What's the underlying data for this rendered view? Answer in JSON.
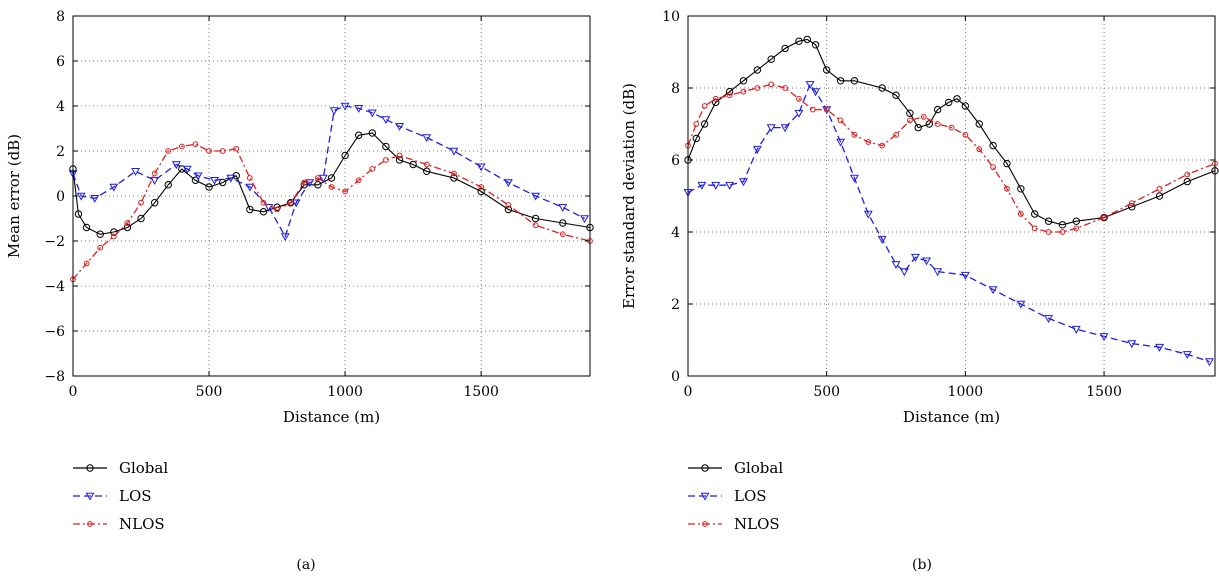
{
  "chart_data": [
    {
      "type": "line",
      "caption": "(a)",
      "xlabel": "Distance (m)",
      "ylabel": "Mean error (dB)",
      "xlim": [
        0,
        1900
      ],
      "ylim": [
        -8,
        8
      ],
      "xticks": [
        0,
        500,
        1000,
        1500
      ],
      "yticks": [
        -8,
        -6,
        -4,
        -2,
        0,
        2,
        4,
        6,
        8
      ],
      "xtick_labels": [
        "0",
        "500",
        "1000",
        "1500"
      ],
      "ytick_labels": [
        "−8",
        "−6",
        "−4",
        "−2",
        "0",
        "2",
        "4",
        "6",
        "8"
      ],
      "grid": true,
      "legend_position": "below",
      "series": [
        {
          "name": "Global",
          "color": "#000000",
          "marker": "circle",
          "dash": "solid",
          "x": [
            0,
            20,
            50,
            100,
            150,
            200,
            250,
            300,
            350,
            400,
            450,
            500,
            550,
            600,
            650,
            700,
            750,
            800,
            850,
            900,
            950,
            1000,
            1050,
            1100,
            1150,
            1200,
            1250,
            1300,
            1400,
            1500,
            1600,
            1700,
            1800,
            1900
          ],
          "y": [
            1.2,
            -0.8,
            -1.4,
            -1.7,
            -1.6,
            -1.4,
            -1.0,
            -0.3,
            0.5,
            1.2,
            0.7,
            0.4,
            0.6,
            0.9,
            -0.6,
            -0.7,
            -0.5,
            -0.3,
            0.5,
            0.5,
            0.8,
            1.8,
            2.7,
            2.8,
            2.2,
            1.6,
            1.4,
            1.1,
            0.8,
            0.2,
            -0.6,
            -1.0,
            -1.2,
            -1.4
          ]
        },
        {
          "name": "LOS",
          "color": "#1f1fe0",
          "marker": "triangle-down",
          "dash": "dashed",
          "x": [
            0,
            30,
            80,
            150,
            230,
            300,
            380,
            420,
            460,
            520,
            580,
            650,
            720,
            780,
            820,
            870,
            920,
            960,
            1000,
            1050,
            1100,
            1150,
            1200,
            1300,
            1400,
            1500,
            1600,
            1700,
            1800,
            1880
          ],
          "y": [
            1.0,
            0.0,
            -0.1,
            0.4,
            1.1,
            0.7,
            1.4,
            1.2,
            0.9,
            0.7,
            0.8,
            0.4,
            -0.5,
            -1.8,
            -0.3,
            0.6,
            0.8,
            3.8,
            4.0,
            3.9,
            3.7,
            3.4,
            3.1,
            2.6,
            2.0,
            1.3,
            0.6,
            0.0,
            -0.5,
            -1.0
          ]
        },
        {
          "name": "NLOS",
          "color": "#e01f1f",
          "marker": "circle-small",
          "dash": "dashdot",
          "x": [
            0,
            50,
            100,
            150,
            200,
            250,
            300,
            350,
            400,
            450,
            500,
            550,
            600,
            650,
            700,
            750,
            800,
            850,
            900,
            950,
            1000,
            1050,
            1100,
            1150,
            1200,
            1300,
            1400,
            1500,
            1600,
            1700,
            1800,
            1900
          ],
          "y": [
            -3.7,
            -3.0,
            -2.3,
            -1.8,
            -1.2,
            -0.3,
            1.0,
            2.0,
            2.2,
            2.3,
            2.0,
            2.0,
            2.1,
            0.8,
            -0.3,
            -0.6,
            -0.3,
            0.6,
            0.8,
            0.4,
            0.2,
            0.7,
            1.2,
            1.6,
            1.8,
            1.4,
            1.0,
            0.4,
            -0.4,
            -1.3,
            -1.7,
            -2.0
          ]
        }
      ]
    },
    {
      "type": "line",
      "caption": "(b)",
      "xlabel": "Distance (m)",
      "ylabel": "Error standard deviation (dB)",
      "xlim": [
        0,
        1900
      ],
      "ylim": [
        0,
        10
      ],
      "xticks": [
        0,
        500,
        1000,
        1500
      ],
      "yticks": [
        0,
        2,
        4,
        6,
        8,
        10
      ],
      "xtick_labels": [
        "0",
        "500",
        "1000",
        "1500"
      ],
      "ytick_labels": [
        "0",
        "2",
        "4",
        "6",
        "8",
        "10"
      ],
      "grid": true,
      "legend_position": "below",
      "series": [
        {
          "name": "Global",
          "color": "#000000",
          "marker": "circle",
          "dash": "solid",
          "x": [
            0,
            30,
            60,
            100,
            150,
            200,
            250,
            300,
            350,
            400,
            430,
            460,
            500,
            550,
            600,
            700,
            750,
            800,
            830,
            870,
            900,
            940,
            970,
            1000,
            1050,
            1100,
            1150,
            1200,
            1250,
            1300,
            1350,
            1400,
            1500,
            1600,
            1700,
            1800,
            1900
          ],
          "y": [
            6.0,
            6.6,
            7.0,
            7.6,
            7.9,
            8.2,
            8.5,
            8.8,
            9.1,
            9.3,
            9.35,
            9.2,
            8.5,
            8.2,
            8.2,
            8.0,
            7.8,
            7.3,
            6.9,
            7.0,
            7.4,
            7.6,
            7.7,
            7.5,
            7.0,
            6.4,
            5.9,
            5.2,
            4.5,
            4.3,
            4.2,
            4.3,
            4.4,
            4.7,
            5.0,
            5.4,
            5.7
          ]
        },
        {
          "name": "LOS",
          "color": "#1f1fe0",
          "marker": "triangle-down",
          "dash": "dashed",
          "x": [
            0,
            50,
            100,
            150,
            200,
            250,
            300,
            350,
            400,
            440,
            460,
            500,
            550,
            600,
            650,
            700,
            750,
            780,
            820,
            860,
            900,
            1000,
            1100,
            1200,
            1300,
            1400,
            1500,
            1600,
            1700,
            1800,
            1880
          ],
          "y": [
            5.1,
            5.3,
            5.3,
            5.3,
            5.4,
            6.3,
            6.9,
            6.9,
            7.3,
            8.1,
            7.9,
            7.4,
            6.5,
            5.5,
            4.5,
            3.8,
            3.1,
            2.9,
            3.3,
            3.2,
            2.9,
            2.8,
            2.4,
            2.0,
            1.6,
            1.3,
            1.1,
            0.9,
            0.8,
            0.6,
            0.4
          ]
        },
        {
          "name": "NLOS",
          "color": "#e01f1f",
          "marker": "circle-small",
          "dash": "dashdot",
          "x": [
            0,
            30,
            60,
            100,
            150,
            200,
            250,
            300,
            350,
            400,
            450,
            500,
            550,
            600,
            650,
            700,
            750,
            800,
            850,
            900,
            950,
            1000,
            1050,
            1100,
            1150,
            1200,
            1250,
            1300,
            1350,
            1400,
            1500,
            1600,
            1700,
            1800,
            1900
          ],
          "y": [
            6.4,
            7.0,
            7.5,
            7.7,
            7.8,
            7.9,
            8.0,
            8.1,
            8.0,
            7.7,
            7.4,
            7.4,
            7.1,
            6.7,
            6.5,
            6.4,
            6.7,
            7.1,
            7.2,
            7.0,
            6.9,
            6.7,
            6.3,
            5.8,
            5.2,
            4.5,
            4.1,
            4.0,
            4.0,
            4.1,
            4.4,
            4.8,
            5.2,
            5.6,
            5.9
          ]
        }
      ]
    }
  ]
}
